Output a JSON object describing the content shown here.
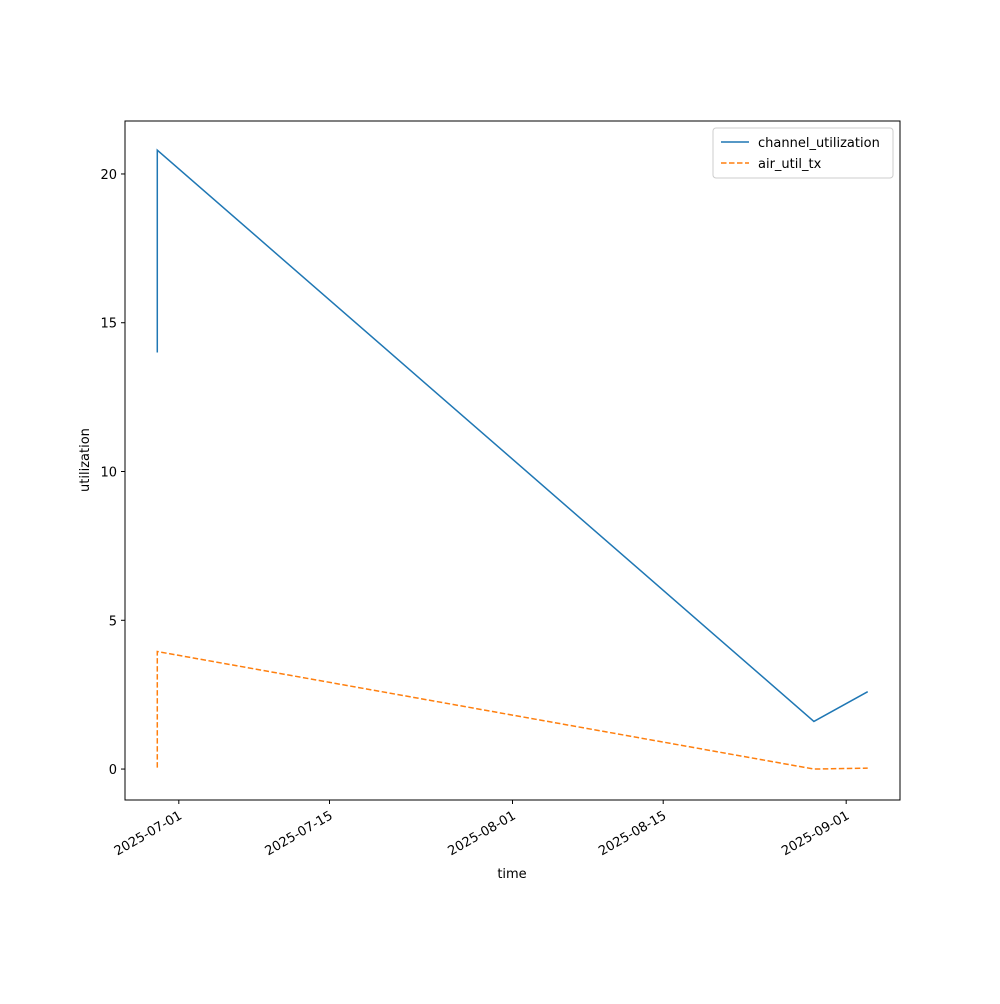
{
  "chart_data": {
    "type": "line",
    "x_label": "time",
    "y_label": "utilization",
    "x": [
      "2025-06-29",
      "2025-06-29",
      "2025-08-29",
      "2025-09-03"
    ],
    "series": [
      {
        "name": "channel_utilization",
        "color": "#1f77b4",
        "linestyle": "solid",
        "values": [
          14.0,
          20.8,
          1.6,
          2.6
        ]
      },
      {
        "name": "air_util_tx",
        "color": "#ff7f0e",
        "linestyle": "dashed",
        "values": [
          0.05,
          3.95,
          0.0,
          0.03
        ]
      }
    ],
    "xlim": [
      "2025-06-26",
      "2025-09-06"
    ],
    "xticks": [
      "2025-07-01",
      "2025-07-15",
      "2025-08-01",
      "2025-08-15",
      "2025-09-01"
    ],
    "ylim": [
      -1.04,
      21.78
    ],
    "yticks": [
      0,
      5,
      10,
      15,
      20
    ],
    "legend": "upper right"
  }
}
